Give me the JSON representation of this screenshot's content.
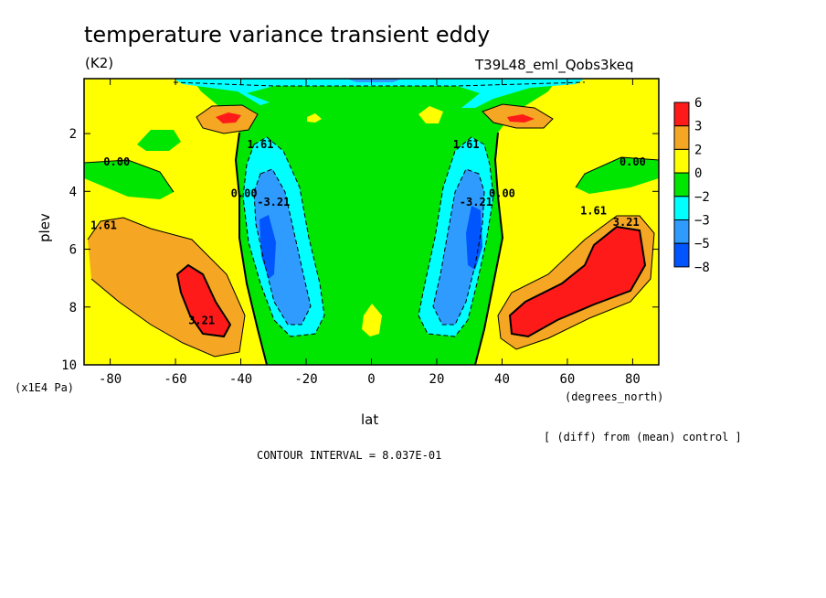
{
  "chart_data": {
    "type": "contour",
    "title": "temperature variance transient eddy",
    "units": "(K2)",
    "run": "T39L48_eml_Qobs3keq",
    "xlabel": "lat",
    "xunits": "(degrees_north)",
    "ylabel": "plev",
    "yunits": "(x1E4 Pa)",
    "xlim": [
      -88,
      88
    ],
    "ylim": [
      10,
      0.1
    ],
    "x_ticks": [
      "-80",
      "-60",
      "-40",
      "-20",
      "0",
      "20",
      "40",
      "60",
      "80"
    ],
    "x_tick_values": [
      -80,
      -60,
      -40,
      -20,
      0,
      20,
      40,
      60,
      80
    ],
    "y_ticks": [
      "2",
      "4",
      "6",
      "8",
      "10"
    ],
    "y_tick_values": [
      2,
      4,
      6,
      8,
      10
    ],
    "note": "[ (diff) from (mean) control ]",
    "contour_interval": "CONTOUR INTERVAL = 8.037E-01",
    "colorbar": {
      "labels": [
        "6",
        "3",
        "2",
        "0",
        "−2",
        "−3",
        "−5",
        "−8"
      ],
      "colors": [
        "#ff1a1a",
        "#f5a623",
        "#ffff00",
        "#00e600",
        "#00ffff",
        "#2f9bff",
        "#0055ff"
      ]
    },
    "contour_labels": [
      {
        "text": "0.00",
        "lat": -78,
        "plev": 3.1
      },
      {
        "text": "0.00",
        "lat": 80,
        "plev": 3.1
      },
      {
        "text": "0.00",
        "lat": -39,
        "plev": 4.2
      },
      {
        "text": "0.00",
        "lat": 40,
        "plev": 4.2
      },
      {
        "text": "1.61",
        "lat": -34,
        "plev": 2.5
      },
      {
        "text": "1.61",
        "lat": 29,
        "plev": 2.5
      },
      {
        "text": "-3.21",
        "lat": -30,
        "plev": 4.5
      },
      {
        "text": "-3.21",
        "lat": 32,
        "plev": 4.5
      },
      {
        "text": "1.61",
        "lat": -82,
        "plev": 5.3
      },
      {
        "text": "3.21",
        "lat": -52,
        "plev": 8.6
      },
      {
        "text": "1.61",
        "lat": 68,
        "plev": 4.8
      },
      {
        "text": "3.21",
        "lat": 78,
        "plev": 5.2
      }
    ]
  }
}
